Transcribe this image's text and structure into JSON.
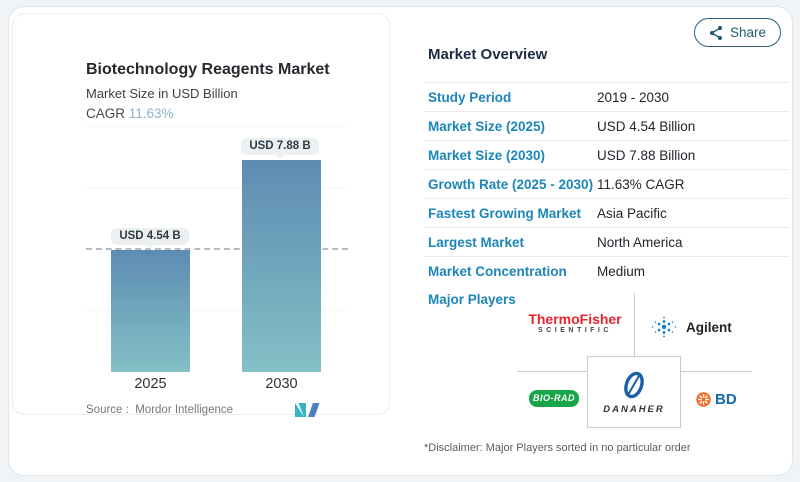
{
  "share": {
    "label": "Share"
  },
  "chart_panel": {
    "title": "Biotechnology Reagents Market",
    "subtitle": "Market Size in USD Billion",
    "cagr_label": "CAGR",
    "cagr_value": "11.63%",
    "bars": [
      {
        "year": "2025",
        "badge": "USD 4.54 B",
        "value": 4.54
      },
      {
        "year": "2030",
        "badge": "USD 7.88 B",
        "value": 7.88
      }
    ],
    "source_prefix": "Source :",
    "source_name": "Mordor Intelligence"
  },
  "chart_data": {
    "type": "bar",
    "title": "Biotechnology Reagents Market",
    "subtitle": "Market Size in USD Billion",
    "categories": [
      "2025",
      "2030"
    ],
    "values": [
      4.54,
      7.88
    ],
    "bar_labels": [
      "USD 4.54 B",
      "USD 7.88 B"
    ],
    "ylabel": "USD Billion",
    "dashed_reference_value": 4.54,
    "bar_gradient": [
      "#5d8cb2",
      "#84c0c6"
    ],
    "cagr": "11.63%"
  },
  "overview": {
    "title": "Market Overview",
    "rows": [
      {
        "label": "Study Period",
        "value": "2019 - 2030"
      },
      {
        "label": "Market Size (2025)",
        "value": "USD 4.54 Billion"
      },
      {
        "label": "Market Size (2030)",
        "value": "USD 7.88 Billion"
      },
      {
        "label": "Growth Rate (2025 - 2030)",
        "value": "11.63% CAGR"
      },
      {
        "label": "Fastest Growing Market",
        "value": "Asia Pacific"
      },
      {
        "label": "Largest Market",
        "value": "North America"
      },
      {
        "label": "Market Concentration",
        "value": "Medium"
      }
    ],
    "major_players_label": "Major Players",
    "players": {
      "thermo_main": "ThermoFisher",
      "thermo_sub": "SCIENTIFIC",
      "agilent": "Agilent",
      "biorad": "BIO-RAD",
      "danaher": "DANAHER",
      "bd": "BD"
    },
    "disclaimer": "*Disclaimer: Major Players sorted in no particular order"
  },
  "colors": {
    "accent_blue": "#1c86b8",
    "navy_text": "#1d2b43",
    "bar_top": "#5d8cb2",
    "bar_bottom": "#84c0c6",
    "cagr_value": "#8fb3cc",
    "thermo_red": "#e8242c",
    "biorad_green": "#18a64b",
    "danaher_blue": "#1b5faa",
    "bd_orange": "#f16a22",
    "bd_blue": "#1767ad"
  }
}
